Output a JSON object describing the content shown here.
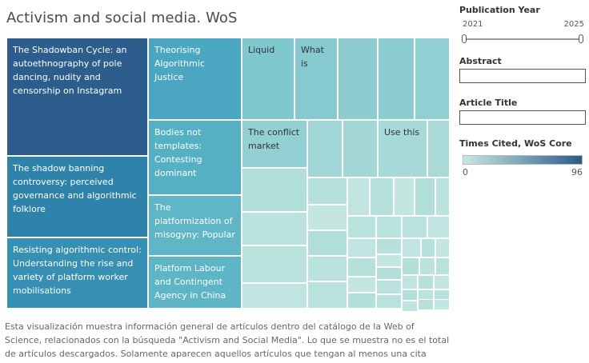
{
  "dashboard": {
    "title": "Activism and social media. WoS",
    "caption": "Esta visualización muestra información general de artículos dentro del catálogo de la Web of Science, relacionados con la búsqueda \"Activism and Social Media\". Lo que se muestra no es el total de artículos descargados. Solamente aparecen aquellos artículos que tengan al menos una cita"
  },
  "filters": {
    "year_label": "Publication Year",
    "year_min": "2021",
    "year_max": "2025",
    "abstract_label": "Abstract",
    "abstract_value": "",
    "title_label": "Article Title",
    "title_value": ""
  },
  "legend": {
    "label": "Times Cited, WoS Core",
    "min": "0",
    "max": "96",
    "color_low": "#c6e9e3",
    "color_high": "#2a5a8a"
  },
  "treemap": {
    "tiles": [
      {
        "label": "The Shadowban Cycle: an autoethnography of pole dancing, nudity and censorship on Instagram",
        "color": "#2c5d8c"
      },
      {
        "label": "The shadow banning controversy: perceived governance and algorithmic folklore",
        "color": "#2f82a9"
      },
      {
        "label": "Resisting algorithmic control: Understanding the rise and variety of platform worker mobilisations",
        "color": "#3790b4"
      },
      {
        "label": "Theorising Algorithmic Justice",
        "color": "#4ba6c1"
      },
      {
        "label": "Bodies not templates: Contesting dominant",
        "color": "#55b0c4"
      },
      {
        "label": "The platformization of misogyny: Popular",
        "color": "#5eb6c7"
      },
      {
        "label": "Platform Labour and Contingent Agency in China",
        "color": "#5db5c6"
      },
      {
        "label": "Liquid",
        "color": "#7ec7cd"
      },
      {
        "label": "What is",
        "color": "#86cacf"
      },
      {
        "label": "",
        "color": "#8dcdd1"
      },
      {
        "label": "",
        "color": "#8bcdd1"
      },
      {
        "label": "",
        "color": "#90cfd2"
      },
      {
        "label": "The conflict market",
        "color": "#93d0d3"
      },
      {
        "label": "",
        "color": "#a0d6d5"
      },
      {
        "label": "",
        "color": "#a3d7d6"
      },
      {
        "label": "Use this",
        "color": "#a6d9d7"
      },
      {
        "label": "",
        "color": "#a9dad8"
      }
    ]
  }
}
